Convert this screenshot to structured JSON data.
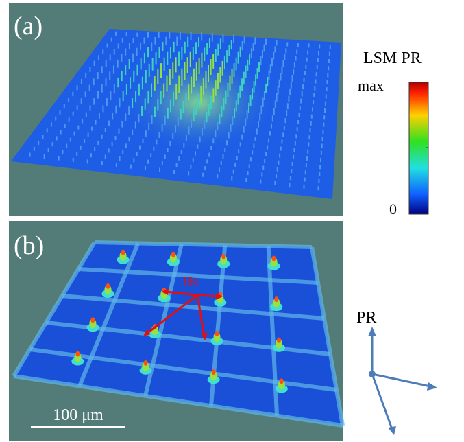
{
  "panel_a": {
    "label": "(a)"
  },
  "panel_b": {
    "label": "(b)",
    "annotation": "Hs",
    "scale_bar": "100 μm"
  },
  "colorbar": {
    "title": "LSM PR",
    "max_label": "max",
    "min_label": "0"
  },
  "axes_icon": {
    "label": "PR"
  }
}
